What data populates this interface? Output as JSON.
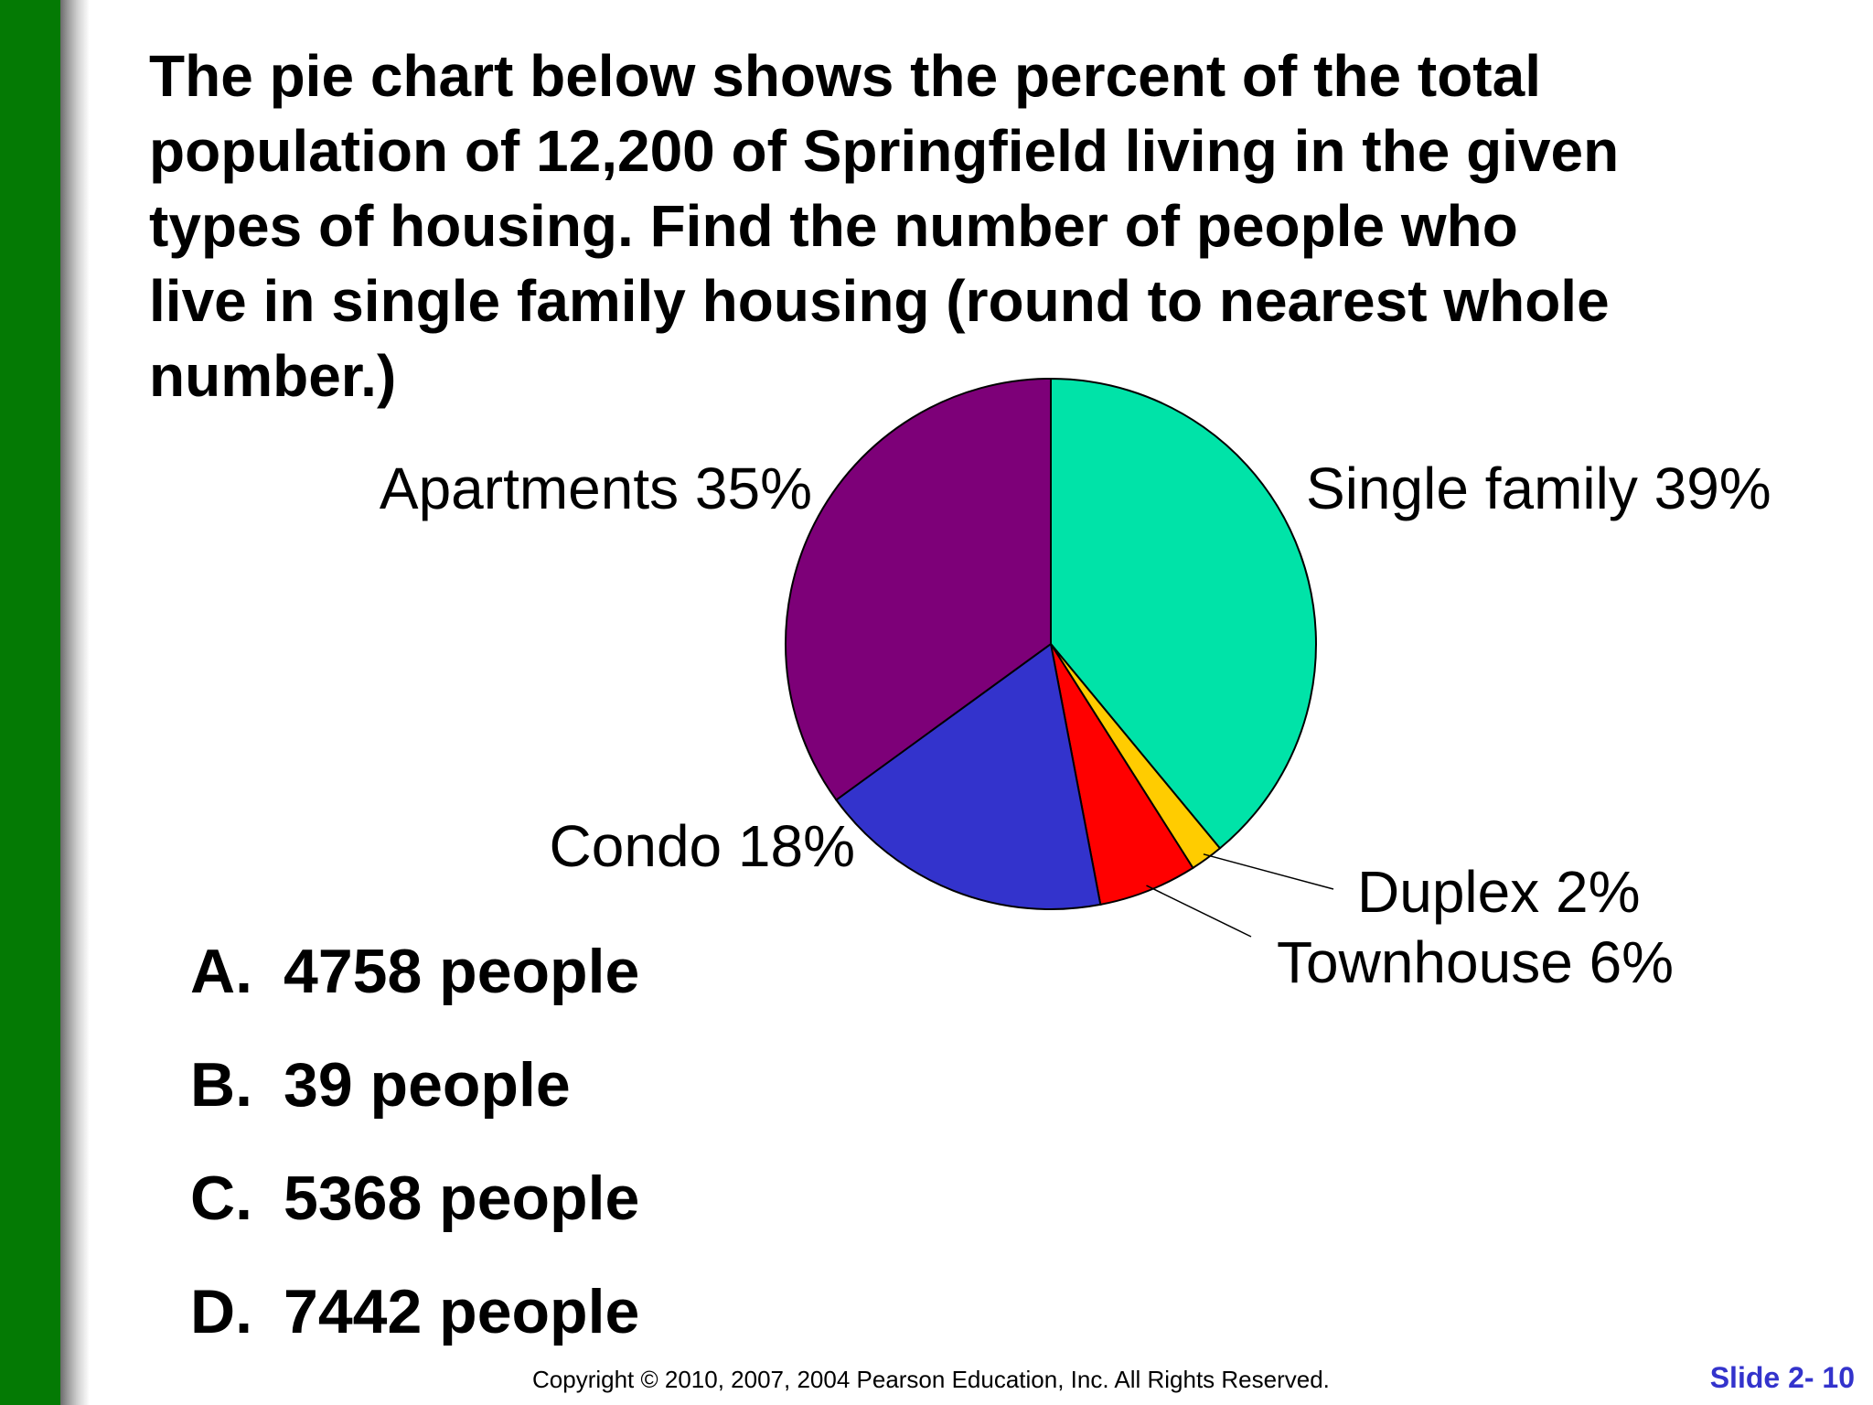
{
  "question": "The pie chart below shows the percent of the total\npopulation of 12,200 of Springfield living in the given\ntypes of housing.  Find the number of people who\nlive in single family housing (round to nearest whole\nnumber.)",
  "choices": [
    {
      "letter": "A.",
      "text": "4758 people"
    },
    {
      "letter": "B.",
      "text": "39 people"
    },
    {
      "letter": "C.",
      "text": "5368 people"
    },
    {
      "letter": "D.",
      "text": "7442 people"
    }
  ],
  "footer": {
    "copyright": "Copyright © 2010, 2007, 2004 Pearson Education, Inc. All Rights Reserved.",
    "slide": "Slide 2- 10"
  },
  "colors": {
    "sidebar": "#047a04",
    "slide_number": "#3333cc"
  },
  "chart_data": {
    "type": "pie",
    "slices": [
      {
        "label": "Single family 39%",
        "value": 39,
        "color": "#00e3a8"
      },
      {
        "label": "Duplex 2%",
        "value": 2,
        "color": "#ffcc00"
      },
      {
        "label": "Townhouse 6%",
        "value": 6,
        "color": "#ff0000"
      },
      {
        "label": "Condo 18%",
        "value": 18,
        "color": "#3333cc"
      },
      {
        "label": "Apartments 35%",
        "value": 35,
        "color": "#7d0078"
      }
    ]
  }
}
